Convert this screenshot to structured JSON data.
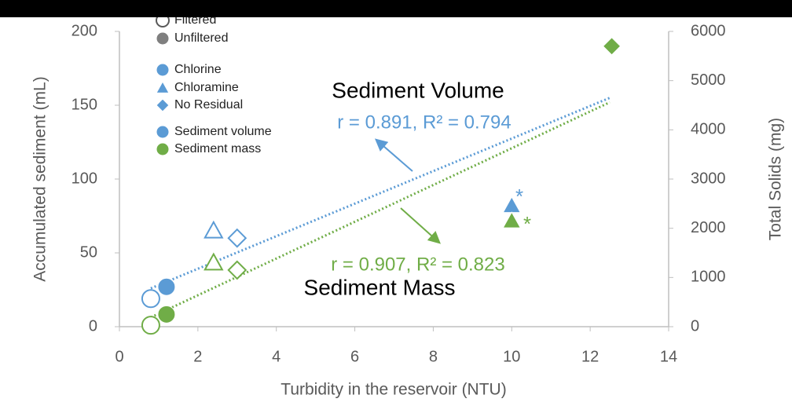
{
  "chart_data": {
    "type": "scatter",
    "xlabel": "Turbidity in the reservoir (NTU)",
    "ylabel": "Accumulated sediment (mL)",
    "y2label": "Total Solids (mg)",
    "xlim": [
      0,
      14
    ],
    "xticks": [
      0,
      2,
      4,
      6,
      8,
      10,
      12,
      14
    ],
    "ylim": [
      0,
      200
    ],
    "yticks": [
      0,
      50,
      100,
      150,
      200
    ],
    "y2lim": [
      0,
      6000
    ],
    "y2ticks": [
      0,
      1000,
      2000,
      3000,
      4000,
      5000,
      6000
    ],
    "series": [
      {
        "name": "Sediment volume",
        "color": "#5b9bd5",
        "axis": "y",
        "x": [
          0.8,
          1.2,
          2.4,
          3.0,
          10.0,
          12.55
        ],
        "values": [
          19,
          27,
          65,
          60,
          82,
          190
        ],
        "markers": [
          "circle",
          "circle",
          "triangle",
          "diamond",
          "triangle",
          "diamond"
        ],
        "filled": [
          false,
          true,
          false,
          false,
          true,
          true
        ]
      },
      {
        "name": "Sediment mass",
        "color": "#70ad47",
        "axis": "y2",
        "x": [
          0.8,
          1.2,
          2.4,
          3.0,
          10.0,
          12.55
        ],
        "values": [
          30,
          250,
          1300,
          1150,
          2150,
          5700
        ],
        "markers": [
          "circle",
          "circle",
          "triangle",
          "diamond",
          "triangle",
          "diamond"
        ],
        "filled": [
          false,
          true,
          false,
          false,
          true,
          true
        ]
      }
    ],
    "trendlines": [
      {
        "color": "#5b9bd5",
        "axis": "y",
        "x": [
          0.8,
          12.5
        ],
        "values": [
          26,
          155
        ]
      },
      {
        "color": "#70ad47",
        "axis": "y2",
        "x": [
          0.8,
          12.5
        ],
        "values": [
          190,
          4560
        ]
      }
    ],
    "legend": [
      {
        "label": "Filtered",
        "marker": "circle",
        "filled": false,
        "color": "#595959"
      },
      {
        "label": "Unfiltered",
        "marker": "circle",
        "filled": true,
        "color": "#7f7f7f"
      },
      {
        "label": "Chlorine",
        "marker": "circle",
        "filled": true,
        "color": "#5b9bd5"
      },
      {
        "label": "Chloramine",
        "marker": "triangle",
        "filled": true,
        "color": "#5b9bd5"
      },
      {
        "label": "No Residual",
        "marker": "diamond",
        "filled": true,
        "color": "#5b9bd5"
      },
      {
        "label": "Sediment volume",
        "marker": "circle",
        "filled": true,
        "color": "#5b9bd5"
      },
      {
        "label": "Sediment mass",
        "marker": "circle",
        "filled": true,
        "color": "#70ad47"
      }
    ],
    "annotations": [
      "Sediment Volume",
      "r = 0.891, R² = 0.794",
      "r = 0.907, R² = 0.823",
      "Sediment Mass",
      "*",
      "*"
    ]
  }
}
